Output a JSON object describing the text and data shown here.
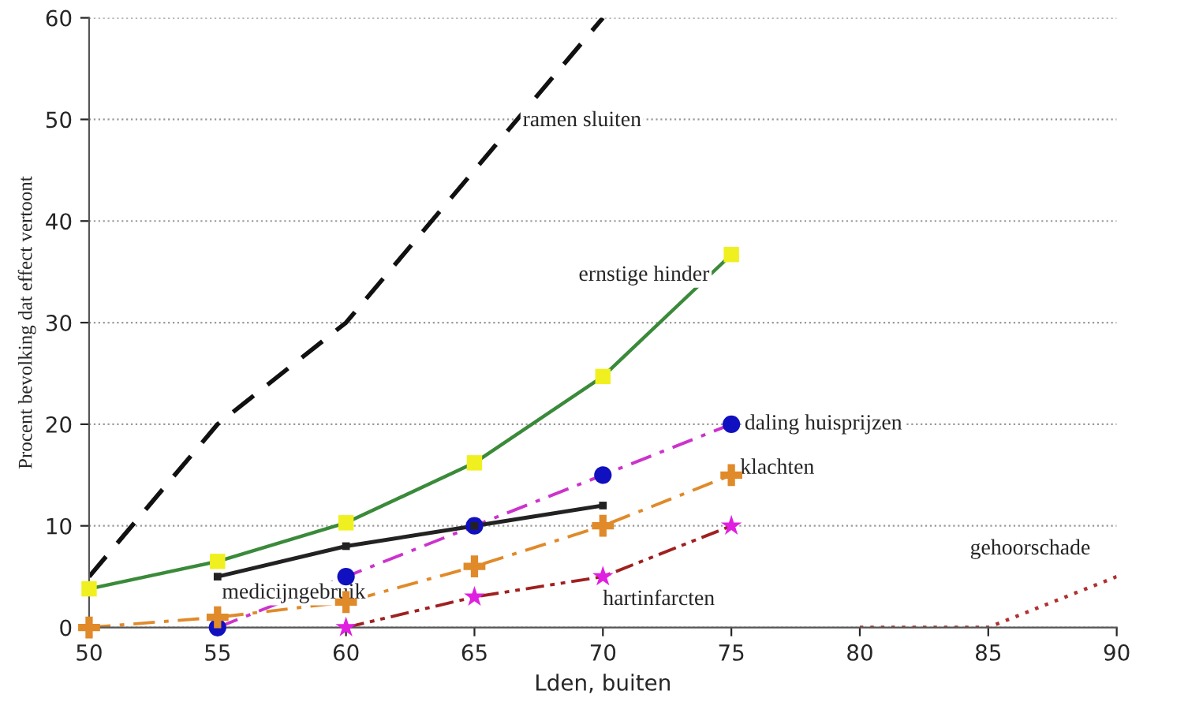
{
  "chart_data": {
    "type": "line",
    "xlabel": "Lden, buiten",
    "ylabel": "Procent bevolking dat effect vertoont",
    "xlim": [
      50,
      90
    ],
    "xticks": [
      50,
      55,
      60,
      65,
      70,
      75,
      80,
      85,
      90
    ],
    "ylim": [
      0,
      60
    ],
    "yticks": [
      0,
      10,
      20,
      30,
      40,
      50,
      60
    ],
    "grid": "y",
    "series": [
      {
        "name": "ramen sluiten",
        "color": "#111111",
        "line_style": "dashed",
        "marker": "none",
        "x": [
          50,
          55,
          60,
          65,
          70
        ],
        "values": [
          5,
          20,
          30,
          45,
          60
        ]
      },
      {
        "name": "ernstige hinder",
        "color": "#3a8a3a",
        "colors": [
          "#f0f020",
          "#f0f020",
          "#f0f020",
          "#f0f020",
          "#f0f020",
          "#f0f020"
        ],
        "line_style": "solid",
        "marker": "square",
        "x": [
          50,
          55,
          60,
          65,
          70,
          75
        ],
        "values": [
          3.8,
          6.5,
          10.3,
          16.2,
          24.7,
          36.7
        ]
      },
      {
        "name": "daling huisprijzen",
        "color": "#cc33cc",
        "colors": [
          "#1010c0",
          "#1010c0",
          "#1010c0",
          "#1010c0",
          "#1010c0"
        ],
        "line_style": "dashdot",
        "marker": "circle",
        "x": [
          55,
          60,
          65,
          70,
          75
        ],
        "values": [
          0,
          5,
          10,
          15,
          20
        ]
      },
      {
        "name": "medicijngebruik",
        "color": "#222222",
        "line_style": "solid",
        "marker": "square",
        "x": [
          55,
          60,
          65,
          70
        ],
        "values": [
          5,
          8,
          10,
          12
        ]
      },
      {
        "name": "klachten",
        "color": "#e08a2a",
        "line_style": "dashdot",
        "marker": "cross",
        "x": [
          50,
          55,
          60,
          65,
          70,
          75
        ],
        "values": [
          0,
          1,
          2.5,
          6,
          10,
          15
        ]
      },
      {
        "name": "hartinfarcten",
        "color": "#a02020",
        "colors": [
          "#e020e0",
          "#e020e0",
          "#e020e0",
          "#e020e0"
        ],
        "line_style": "dashdotdot",
        "marker": "star",
        "x": [
          60,
          65,
          70,
          75
        ],
        "values": [
          0,
          3,
          5,
          10
        ]
      },
      {
        "name": "gehoorschade",
        "color": "#b03030",
        "line_style": "dotted",
        "marker": "none",
        "x": [
          80,
          85,
          90
        ],
        "values": [
          0,
          0,
          5
        ]
      }
    ]
  }
}
